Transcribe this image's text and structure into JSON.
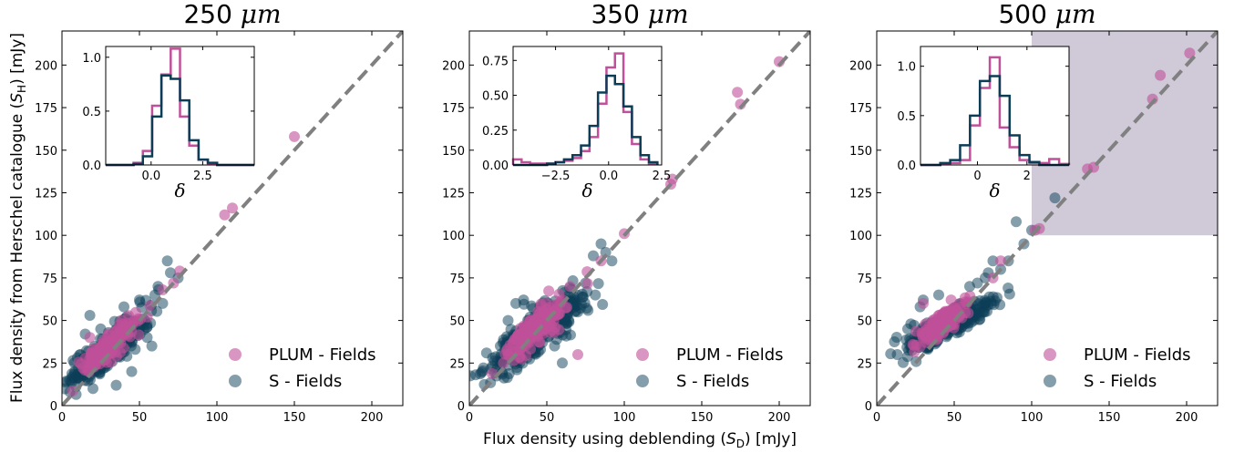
{
  "colors": {
    "plum": "#c0509a",
    "s_fields": "#0c3d57",
    "one_to_one": "#808080",
    "highlight": "#cfc9d8"
  },
  "xlabel_shared": "Flux density using deblending (",
  "xlabel_shared_sym": "S",
  "xlabel_shared_sub": "D",
  "xlabel_shared_end": ") [mJy]",
  "ylabel_shared": "Flux density from Herschel catalogue (",
  "ylabel_shared_sym": "S",
  "ylabel_shared_sub": "H",
  "ylabel_shared_end": ") [mJy]",
  "chart_data": [
    {
      "type": "scatter",
      "title": "250 μm",
      "title_num": "250",
      "title_unit": "μm",
      "xlim": [
        0,
        220
      ],
      "ylim": [
        0,
        220
      ],
      "xticks": [
        "0",
        "50",
        "100",
        "150",
        "200"
      ],
      "yticks": [
        "0",
        "25",
        "50",
        "75",
        "100",
        "125",
        "150",
        "175",
        "200"
      ],
      "legend": [
        "PLUM - Fields",
        "S - Fields"
      ],
      "legend_position": "lower-right",
      "one_to_one_line": true,
      "highlight_region": null,
      "series": [
        {
          "name": "S - Fields",
          "cluster": {
            "center": [
              30,
              33
            ],
            "spread": [
              12,
              10
            ],
            "count": 340
          },
          "outliers": [
            [
              5,
              15
            ],
            [
              8,
              25
            ],
            [
              10,
              18
            ],
            [
              12,
              30
            ],
            [
              18,
              53
            ],
            [
              20,
              10
            ],
            [
              25,
              45
            ],
            [
              35,
              12
            ],
            [
              45,
              20
            ],
            [
              55,
              40
            ],
            [
              60,
              65
            ],
            [
              62,
              70
            ],
            [
              65,
              60
            ],
            [
              68,
              85
            ],
            [
              70,
              78
            ],
            [
              75,
              75
            ],
            [
              15,
              42
            ],
            [
              40,
              58
            ],
            [
              50,
              62
            ],
            [
              58,
              35
            ]
          ]
        },
        {
          "name": "PLUM - Fields",
          "cluster": {
            "center": [
              30,
              35
            ],
            "spread": [
              9,
              8
            ],
            "count": 150
          },
          "outliers": [
            [
              105,
              112
            ],
            [
              110,
              116
            ],
            [
              150,
              158
            ],
            [
              76,
              79
            ],
            [
              72,
              72
            ],
            [
              18,
              40
            ],
            [
              55,
              52
            ],
            [
              65,
              68
            ]
          ]
        }
      ],
      "inset": {
        "xlabel": "δ",
        "xlim": [
          -2.2,
          5.0
        ],
        "ylim": [
          0,
          1.1
        ],
        "xticks": [
          "0.0",
          "2.5"
        ],
        "xtick_values": [
          0,
          2.5
        ],
        "yticks": [
          "0.0",
          "0.5",
          "1.0"
        ],
        "ytick_values": [
          0,
          0.5,
          1.0
        ],
        "bin_edges": [
          -2.2,
          -1.75,
          -1.3,
          -0.85,
          -0.4,
          0.05,
          0.5,
          0.95,
          1.4,
          1.85,
          2.3,
          2.75,
          3.2,
          3.65,
          4.1,
          4.55,
          5.0
        ],
        "plum_heights": [
          0,
          0,
          0,
          0.02,
          0.13,
          0.55,
          0.84,
          1.08,
          0.45,
          0.18,
          0.05,
          0.01,
          0,
          0,
          0,
          0
        ],
        "s_heights": [
          0,
          0,
          0,
          0.01,
          0.08,
          0.45,
          0.83,
          0.8,
          0.6,
          0.23,
          0.05,
          0.02,
          0,
          0,
          0,
          0
        ]
      }
    },
    {
      "type": "scatter",
      "title": "350 μm",
      "title_num": "350",
      "title_unit": "μm",
      "xlim": [
        0,
        220
      ],
      "ylim": [
        0,
        220
      ],
      "xticks": [
        "0",
        "50",
        "100",
        "150",
        "200"
      ],
      "yticks": [
        "0",
        "25",
        "50",
        "75",
        "100",
        "125",
        "150",
        "175",
        "200"
      ],
      "legend": [
        "PLUM - Fields",
        "S - Fields"
      ],
      "legend_position": "lower-right",
      "one_to_one_line": true,
      "highlight_region": null,
      "series": [
        {
          "name": "S - Fields",
          "cluster": {
            "center": [
              42,
              42
            ],
            "spread": [
              15,
              12
            ],
            "count": 380
          },
          "outliers": [
            [
              15,
              28
            ],
            [
              18,
              22
            ],
            [
              20,
              35
            ],
            [
              60,
              25
            ],
            [
              62,
              50
            ],
            [
              70,
              55
            ],
            [
              75,
              72
            ],
            [
              80,
              88
            ],
            [
              85,
              95
            ],
            [
              88,
              90
            ],
            [
              92,
              85
            ],
            [
              25,
              50
            ],
            [
              30,
              60
            ],
            [
              35,
              62
            ],
            [
              55,
              35
            ]
          ]
        },
        {
          "name": "PLUM - Fields",
          "cluster": {
            "center": [
              42,
              45
            ],
            "spread": [
              10,
              9
            ],
            "count": 170
          },
          "outliers": [
            [
              100,
              101
            ],
            [
              130,
              130
            ],
            [
              131,
              133
            ],
            [
              173,
              184
            ],
            [
              175,
              177
            ],
            [
              200,
              202
            ],
            [
              70,
              30
            ],
            [
              22,
              25
            ],
            [
              60,
              62
            ],
            [
              65,
              70
            ],
            [
              85,
              85
            ]
          ]
        }
      ],
      "inset": {
        "xlabel": "δ",
        "xlim": [
          -4.5,
          2.5
        ],
        "ylim": [
          0,
          0.85
        ],
        "xticks": [
          "−2.5",
          "0.0",
          "2.5"
        ],
        "xtick_values": [
          -2.5,
          0,
          2.5
        ],
        "yticks": [
          "0.00",
          "0.25",
          "0.50",
          "0.75"
        ],
        "ytick_values": [
          0,
          0.25,
          0.5,
          0.75
        ],
        "bin_edges": [
          -4.5,
          -4.1,
          -3.7,
          -3.3,
          -2.9,
          -2.5,
          -2.1,
          -1.7,
          -1.3,
          -0.9,
          -0.5,
          -0.1,
          0.3,
          0.7,
          1.1,
          1.5,
          1.9,
          2.3
        ],
        "plum_heights": [
          0.04,
          0.02,
          0.01,
          0.01,
          0.01,
          0.02,
          0.03,
          0.05,
          0.1,
          0.2,
          0.44,
          0.7,
          0.8,
          0.38,
          0.15,
          0.04,
          0.01
        ],
        "s_heights": [
          0,
          0,
          0,
          0,
          0.01,
          0.02,
          0.04,
          0.07,
          0.14,
          0.28,
          0.52,
          0.64,
          0.58,
          0.42,
          0.2,
          0.07,
          0.02
        ]
      }
    },
    {
      "type": "scatter",
      "title": "500 μm",
      "title_num": "500",
      "title_unit": "μm",
      "xlim": [
        0,
        220
      ],
      "ylim": [
        0,
        220
      ],
      "xticks": [
        "0",
        "50",
        "100",
        "150",
        "200"
      ],
      "yticks": [
        "0",
        "25",
        "50",
        "75",
        "100",
        "125",
        "150",
        "175",
        "200"
      ],
      "legend": [
        "PLUM - Fields",
        "S - Fields"
      ],
      "legend_position": "lower-right",
      "one_to_one_line": true,
      "highlight_region": {
        "x": [
          100,
          220
        ],
        "y": [
          100,
          220
        ]
      },
      "series": [
        {
          "name": "S - Fields",
          "cluster": {
            "center": [
              45,
              47
            ],
            "spread": [
              13,
              7
            ],
            "count": 360
          },
          "outliers": [
            [
              20,
              45
            ],
            [
              22,
              48
            ],
            [
              28,
              58
            ],
            [
              70,
              75
            ],
            [
              72,
              78
            ],
            [
              75,
              85
            ],
            [
              80,
              80
            ],
            [
              85,
              85
            ],
            [
              90,
              108
            ],
            [
              100,
              103
            ],
            [
              115,
              122
            ],
            [
              60,
              70
            ],
            [
              65,
              72
            ],
            [
              30,
              62
            ],
            [
              40,
              65
            ],
            [
              55,
              55
            ],
            [
              95,
              95
            ]
          ]
        },
        {
          "name": "PLUM - Fields",
          "cluster": {
            "center": [
              42,
              48
            ],
            "spread": [
              8,
              6
            ],
            "count": 160
          },
          "outliers": [
            [
              102,
              103
            ],
            [
              105,
              104
            ],
            [
              136,
              139
            ],
            [
              140,
              140
            ],
            [
              178,
              180
            ],
            [
              183,
              194
            ],
            [
              202,
              207
            ],
            [
              75,
              75
            ],
            [
              80,
              85
            ],
            [
              30,
              60
            ],
            [
              48,
              62
            ]
          ]
        }
      ],
      "inset": {
        "xlabel": "δ",
        "xlim": [
          -2.3,
          3.7
        ],
        "ylim": [
          0,
          1.2
        ],
        "xticks": [
          "0",
          "2"
        ],
        "xtick_values": [
          0,
          2
        ],
        "yticks": [
          "0.0",
          "0.5",
          "1.0"
        ],
        "ytick_values": [
          0,
          0.5,
          1.0
        ],
        "bin_edges": [
          -2.3,
          -1.9,
          -1.5,
          -1.1,
          -0.7,
          -0.3,
          0.1,
          0.5,
          0.9,
          1.3,
          1.7,
          2.1,
          2.5,
          2.9,
          3.3,
          3.7
        ],
        "plum_heights": [
          0,
          0,
          0.01,
          0.02,
          0.05,
          0.4,
          0.78,
          1.09,
          0.38,
          0.18,
          0.05,
          0.02,
          0.02,
          0.06,
          0.01
        ],
        "s_heights": [
          0,
          0,
          0.02,
          0.05,
          0.2,
          0.5,
          0.85,
          0.9,
          0.7,
          0.3,
          0.1,
          0.03,
          0,
          0,
          0
        ]
      }
    }
  ]
}
